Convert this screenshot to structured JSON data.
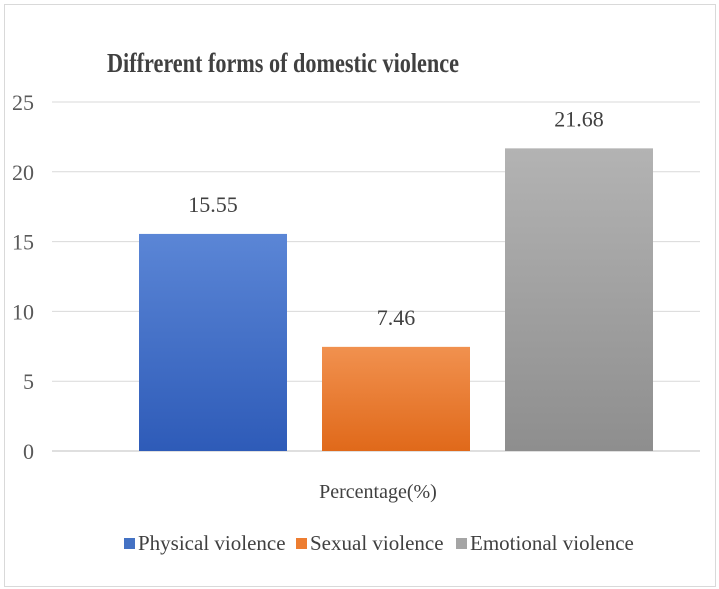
{
  "chart_data": {
    "type": "bar",
    "title": "Diffrerent forms of domestic violence",
    "xlabel": "Percentage(%)",
    "ylabel": "",
    "ylim": [
      0,
      25
    ],
    "yticks": [
      0,
      5,
      10,
      15,
      20,
      25
    ],
    "grid": true,
    "legend_position": "bottom",
    "series": [
      {
        "name": "Physical violence",
        "values": [
          15.55
        ],
        "color": "#4472c4",
        "color_light": "#5b86d6",
        "color_dark": "#2e5bb8"
      },
      {
        "name": "Sexual violence",
        "values": [
          7.46
        ],
        "color": "#ed7d31",
        "color_light": "#f1914f",
        "color_dark": "#e0691a"
      },
      {
        "name": "Emotional violence",
        "values": [
          21.68
        ],
        "color": "#a5a5a5",
        "color_light": "#b3b3b3",
        "color_dark": "#8e8e8e"
      }
    ],
    "data_labels": [
      "15.55",
      "7.46",
      "21.68"
    ]
  }
}
